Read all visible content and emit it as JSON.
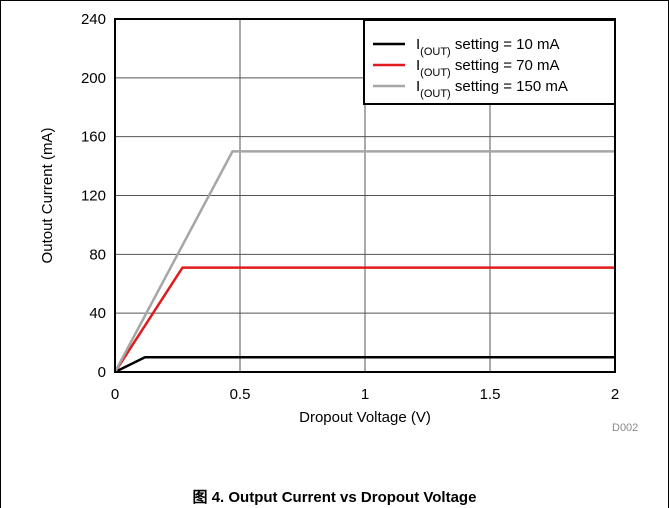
{
  "caption": "图 4. Output Current vs Dropout Voltage",
  "chart_data": {
    "type": "line",
    "title": "",
    "xlabel": "Dropout Voltage (V)",
    "ylabel": "Outout Current (mA)",
    "xlim": [
      0,
      2
    ],
    "ylim": [
      0,
      240
    ],
    "xticks": [
      "0",
      "0.5",
      "1",
      "1.5",
      "2"
    ],
    "yticks": [
      "0",
      "40",
      "80",
      "120",
      "160",
      "200",
      "240"
    ],
    "grid": true,
    "legend_position": "top-right",
    "watermark": "D002",
    "series": [
      {
        "name_main": "I",
        "name_sub": "(OUT)",
        "name_rest": " setting = 10 mA",
        "color": "#000000",
        "x": [
          0,
          0.12,
          2.0
        ],
        "y": [
          0,
          10,
          10
        ]
      },
      {
        "name_main": "I",
        "name_sub": "(OUT)",
        "name_rest": " setting = 70 mA",
        "color": "#e31a1c",
        "x": [
          0,
          0.27,
          2.0
        ],
        "y": [
          0,
          71,
          71
        ]
      },
      {
        "name_main": "I",
        "name_sub": "(OUT)",
        "name_rest": " setting = 150 mA",
        "color": "#a6a6a6",
        "x": [
          0,
          0.47,
          2.0
        ],
        "y": [
          0,
          150,
          150
        ]
      }
    ]
  }
}
